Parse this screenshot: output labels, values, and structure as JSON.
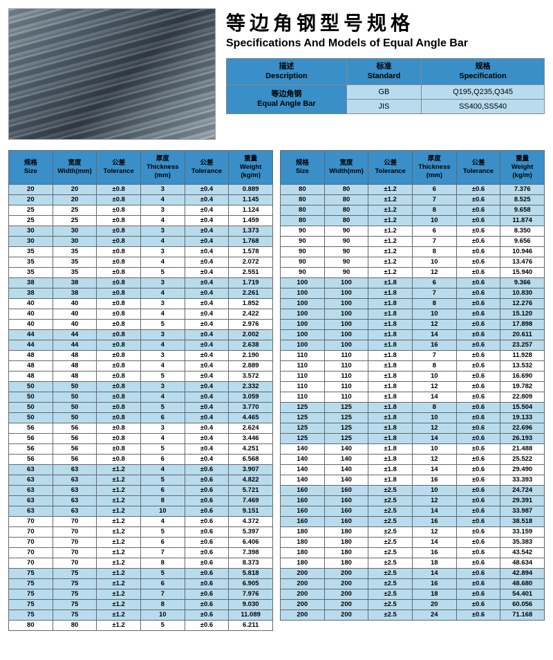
{
  "title": {
    "cn": "等边角钢型号规格",
    "en": "Specifications And Models of Equal Angle Bar"
  },
  "info": {
    "headers": {
      "desc_cn": "描述",
      "desc_en": "Description",
      "std_cn": "标准",
      "std_en": "Standard",
      "spec_cn": "规格",
      "spec_en": "Specification"
    },
    "rowLabel": {
      "cn": "等边角钢",
      "en": "Equal Angle Bar"
    },
    "rows": [
      {
        "standard": "GB",
        "spec": "Q195,Q235,Q345"
      },
      {
        "standard": "JIS",
        "spec": "SS400,SS540"
      }
    ]
  },
  "specHeaders": {
    "size_cn": "规格",
    "size_en": "Size",
    "width_cn": "宽度",
    "width_en": "Width(mm)",
    "tol1_cn": "公差",
    "tol1_en": "Tolerance",
    "thick_cn": "厚度",
    "thick_en": "Thickness (mm)",
    "tol2_cn": "公差",
    "tol2_en": "Tolerance",
    "weight_cn": "重量",
    "weight_en": "Weight (kg/m)"
  },
  "colors": {
    "header_bg": "#3a8fc8",
    "alt_row_bg": "#b8dcee",
    "row_bg": "#ffffff",
    "border": "#666666"
  },
  "left": [
    [
      "20",
      "20",
      "±0.8",
      "3",
      "±0.4",
      "0.889"
    ],
    [
      "20",
      "20",
      "±0.8",
      "4",
      "±0.4",
      "1.145"
    ],
    [
      "25",
      "25",
      "±0.8",
      "3",
      "±0.4",
      "1.124"
    ],
    [
      "25",
      "25",
      "±0.8",
      "4",
      "±0.4",
      "1.459"
    ],
    [
      "30",
      "30",
      "±0.8",
      "3",
      "±0.4",
      "1.373"
    ],
    [
      "30",
      "30",
      "±0.8",
      "4",
      "±0.4",
      "1.768"
    ],
    [
      "35",
      "35",
      "±0.8",
      "3",
      "±0.4",
      "1.578"
    ],
    [
      "35",
      "35",
      "±0.8",
      "4",
      "±0.4",
      "2.072"
    ],
    [
      "35",
      "35",
      "±0.8",
      "5",
      "±0.4",
      "2.551"
    ],
    [
      "38",
      "38",
      "±0.8",
      "3",
      "±0.4",
      "1.719"
    ],
    [
      "38",
      "38",
      "±0.8",
      "4",
      "±0.4",
      "2.261"
    ],
    [
      "40",
      "40",
      "±0.8",
      "3",
      "±0.4",
      "1.852"
    ],
    [
      "40",
      "40",
      "±0.8",
      "4",
      "±0.4",
      "2.422"
    ],
    [
      "40",
      "40",
      "±0.8",
      "5",
      "±0.4",
      "2.976"
    ],
    [
      "44",
      "44",
      "±0.8",
      "3",
      "±0.4",
      "2.002"
    ],
    [
      "44",
      "44",
      "±0.8",
      "4",
      "±0.4",
      "2.638"
    ],
    [
      "48",
      "48",
      "±0.8",
      "3",
      "±0.4",
      "2.190"
    ],
    [
      "48",
      "48",
      "±0.8",
      "4",
      "±0.4",
      "2.889"
    ],
    [
      "48",
      "48",
      "±0.8",
      "5",
      "±0.4",
      "3.572"
    ],
    [
      "50",
      "50",
      "±0.8",
      "3",
      "±0.4",
      "2.332"
    ],
    [
      "50",
      "50",
      "±0.8",
      "4",
      "±0.4",
      "3.059"
    ],
    [
      "50",
      "50",
      "±0.8",
      "5",
      "±0.4",
      "3.770"
    ],
    [
      "50",
      "50",
      "±0.8",
      "6",
      "±0.4",
      "4.465"
    ],
    [
      "56",
      "56",
      "±0.8",
      "3",
      "±0.4",
      "2.624"
    ],
    [
      "56",
      "56",
      "±0.8",
      "4",
      "±0.4",
      "3.446"
    ],
    [
      "56",
      "56",
      "±0.8",
      "5",
      "±0.4",
      "4.251"
    ],
    [
      "56",
      "56",
      "±0.8",
      "6",
      "±0.4",
      "6.568"
    ],
    [
      "63",
      "63",
      "±1.2",
      "4",
      "±0.6",
      "3.907"
    ],
    [
      "63",
      "63",
      "±1.2",
      "5",
      "±0.6",
      "4.822"
    ],
    [
      "63",
      "63",
      "±1.2",
      "6",
      "±0.6",
      "5.721"
    ],
    [
      "63",
      "63",
      "±1.2",
      "8",
      "±0.6",
      "7.469"
    ],
    [
      "63",
      "63",
      "±1.2",
      "10",
      "±0.6",
      "9.151"
    ],
    [
      "70",
      "70",
      "±1.2",
      "4",
      "±0.6",
      "4.372"
    ],
    [
      "70",
      "70",
      "±1.2",
      "5",
      "±0.6",
      "5.397"
    ],
    [
      "70",
      "70",
      "±1.2",
      "6",
      "±0.6",
      "6.406"
    ],
    [
      "70",
      "70",
      "±1.2",
      "7",
      "±0.6",
      "7.398"
    ],
    [
      "70",
      "70",
      "±1.2",
      "8",
      "±0.6",
      "8.373"
    ],
    [
      "75",
      "75",
      "±1.2",
      "5",
      "±0.6",
      "5.818"
    ],
    [
      "75",
      "75",
      "±1.2",
      "6",
      "±0.6",
      "6.905"
    ],
    [
      "75",
      "75",
      "±1.2",
      "7",
      "±0.6",
      "7.976"
    ],
    [
      "75",
      "75",
      "±1.2",
      "8",
      "±0.6",
      "9.030"
    ],
    [
      "75",
      "75",
      "±1.2",
      "10",
      "±0.6",
      "11.089"
    ],
    [
      "80",
      "80",
      "±1.2",
      "5",
      "±0.6",
      "6.211"
    ]
  ],
  "right": [
    [
      "80",
      "80",
      "±1.2",
      "6",
      "±0.6",
      "7.376"
    ],
    [
      "80",
      "80",
      "±1.2",
      "7",
      "±0.6",
      "8.525"
    ],
    [
      "80",
      "80",
      "±1.2",
      "8",
      "±0.6",
      "9.658"
    ],
    [
      "80",
      "80",
      "±1.2",
      "10",
      "±0.6",
      "11.874"
    ],
    [
      "90",
      "90",
      "±1.2",
      "6",
      "±0.6",
      "8.350"
    ],
    [
      "90",
      "90",
      "±1.2",
      "7",
      "±0.6",
      "9.656"
    ],
    [
      "90",
      "90",
      "±1.2",
      "8",
      "±0.6",
      "10.946"
    ],
    [
      "90",
      "90",
      "±1.2",
      "10",
      "±0.6",
      "13.476"
    ],
    [
      "90",
      "90",
      "±1.2",
      "12",
      "±0.6",
      "15.940"
    ],
    [
      "100",
      "100",
      "±1.8",
      "6",
      "±0.6",
      "9.366"
    ],
    [
      "100",
      "100",
      "±1.8",
      "7",
      "±0.6",
      "10.830"
    ],
    [
      "100",
      "100",
      "±1.8",
      "8",
      "±0.6",
      "12.276"
    ],
    [
      "100",
      "100",
      "±1.8",
      "10",
      "±0.6",
      "15.120"
    ],
    [
      "100",
      "100",
      "±1.8",
      "12",
      "±0.6",
      "17.898"
    ],
    [
      "100",
      "100",
      "±1.8",
      "14",
      "±0.6",
      "20.611"
    ],
    [
      "100",
      "100",
      "±1.8",
      "16",
      "±0.6",
      "23.257"
    ],
    [
      "110",
      "110",
      "±1.8",
      "7",
      "±0.6",
      "11.928"
    ],
    [
      "110",
      "110",
      "±1.8",
      "8",
      "±0.6",
      "13.532"
    ],
    [
      "110",
      "110",
      "±1.8",
      "10",
      "±0.6",
      "16.690"
    ],
    [
      "110",
      "110",
      "±1.8",
      "12",
      "±0.6",
      "19.782"
    ],
    [
      "110",
      "110",
      "±1.8",
      "14",
      "±0.6",
      "22.809"
    ],
    [
      "125",
      "125",
      "±1.8",
      "8",
      "±0.6",
      "15.504"
    ],
    [
      "125",
      "125",
      "±1.8",
      "10",
      "±0.6",
      "19.133"
    ],
    [
      "125",
      "125",
      "±1.8",
      "12",
      "±0.6",
      "22.696"
    ],
    [
      "125",
      "125",
      "±1.8",
      "14",
      "±0.6",
      "26.193"
    ],
    [
      "140",
      "140",
      "±1.8",
      "10",
      "±0.6",
      "21.488"
    ],
    [
      "140",
      "140",
      "±1.8",
      "12",
      "±0.6",
      "25.522"
    ],
    [
      "140",
      "140",
      "±1.8",
      "14",
      "±0.6",
      "29.490"
    ],
    [
      "140",
      "140",
      "±1.8",
      "16",
      "±0.6",
      "33.393"
    ],
    [
      "160",
      "160",
      "±2.5",
      "10",
      "±0.6",
      "24.724"
    ],
    [
      "160",
      "160",
      "±2.5",
      "12",
      "±0.6",
      "29.391"
    ],
    [
      "160",
      "160",
      "±2.5",
      "14",
      "±0.6",
      "33.987"
    ],
    [
      "160",
      "160",
      "±2.5",
      "16",
      "±0.6",
      "38.518"
    ],
    [
      "180",
      "180",
      "±2.5",
      "12",
      "±0.6",
      "33.159"
    ],
    [
      "180",
      "180",
      "±2.5",
      "14",
      "±0.6",
      "35.383"
    ],
    [
      "180",
      "180",
      "±2.5",
      "16",
      "±0.6",
      "43.542"
    ],
    [
      "180",
      "180",
      "±2.5",
      "18",
      "±0.6",
      "48.634"
    ],
    [
      "200",
      "200",
      "±2.5",
      "14",
      "±0.6",
      "42.894"
    ],
    [
      "200",
      "200",
      "±2.5",
      "16",
      "±0.6",
      "48.680"
    ],
    [
      "200",
      "200",
      "±2.5",
      "18",
      "±0.6",
      "54.401"
    ],
    [
      "200",
      "200",
      "±2.5",
      "20",
      "±0.6",
      "60.056"
    ],
    [
      "200",
      "200",
      "±2.5",
      "24",
      "±0.6",
      "71.168"
    ]
  ]
}
